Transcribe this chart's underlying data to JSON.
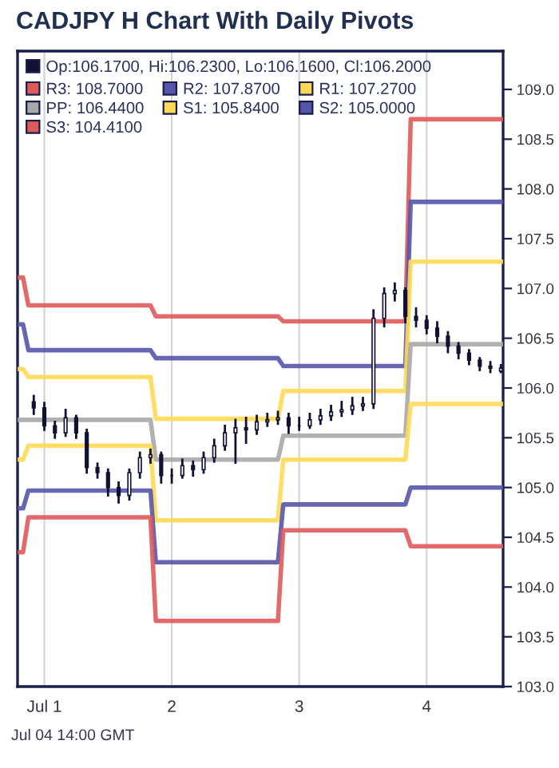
{
  "chart_data": {
    "type": "candlestick",
    "title": "CADJPY H Chart With Daily Pivots",
    "annotations": [
      "Jul 04 14:00 GMT"
    ],
    "xlim": [
      0.79,
      4.6
    ],
    "xticks": [
      {
        "value": 1,
        "label": "Jul 1"
      },
      {
        "value": 2,
        "label": "2"
      },
      {
        "value": 3,
        "label": "3"
      },
      {
        "value": 4,
        "label": "4"
      }
    ],
    "ylim": [
      103,
      109.385
    ],
    "yticks": [
      {
        "value": 103,
        "label": "103.0"
      },
      {
        "value": 103.5,
        "label": "103.5"
      },
      {
        "value": 104,
        "label": "104.0"
      },
      {
        "value": 104.5,
        "label": "104.5"
      },
      {
        "value": 105,
        "label": "105.0"
      },
      {
        "value": 105.5,
        "label": "105.5"
      },
      {
        "value": 106,
        "label": "106.0"
      },
      {
        "value": 106.5,
        "label": "106.5"
      },
      {
        "value": 107,
        "label": "107.0"
      },
      {
        "value": 107.5,
        "label": "107.5"
      },
      {
        "value": 108,
        "label": "108.0"
      },
      {
        "value": 108.5,
        "label": "108.5"
      },
      {
        "value": 109,
        "label": "109.0"
      }
    ],
    "grid": "x",
    "legend": "top left",
    "series": [
      {
        "name": "Op:106.1700, Hi:106.2300, Lo:106.1600, Cl:106.2000",
        "color": "#111133",
        "x": [
          0.917,
          1.0,
          1.083,
          1.167,
          1.25,
          1.333,
          1.417,
          1.5,
          1.583,
          1.667,
          1.75,
          1.833,
          1.917,
          2.0,
          2.083,
          2.167,
          2.25,
          2.333,
          2.417,
          2.5,
          2.583,
          2.667,
          2.75,
          2.833,
          2.917,
          3.0,
          3.083,
          3.167,
          3.25,
          3.333,
          3.417,
          3.5,
          3.583,
          3.667,
          3.75,
          3.833,
          3.917,
          4.0,
          4.083,
          4.167,
          4.25,
          4.333,
          4.417,
          4.5,
          4.583
        ],
        "ohlc": [
          [
            105.86,
            105.92,
            105.74,
            105.8
          ],
          [
            105.8,
            105.85,
            105.58,
            105.62
          ],
          [
            105.62,
            105.66,
            105.5,
            105.55
          ],
          [
            105.55,
            105.78,
            105.52,
            105.7
          ],
          [
            105.7,
            105.72,
            105.5,
            105.55
          ],
          [
            105.55,
            105.58,
            105.15,
            105.2
          ],
          [
            105.2,
            105.24,
            105.1,
            105.15
          ],
          [
            105.15,
            105.18,
            104.92,
            105.0
          ],
          [
            105.0,
            105.05,
            104.85,
            104.92
          ],
          [
            104.92,
            105.18,
            104.88,
            105.15
          ],
          [
            105.15,
            105.35,
            105.1,
            105.3
          ],
          [
            105.3,
            105.38,
            105.25,
            105.33
          ],
          [
            105.33,
            105.35,
            105.05,
            105.12
          ],
          [
            105.12,
            105.18,
            105.05,
            105.12
          ],
          [
            105.12,
            105.28,
            105.1,
            105.22
          ],
          [
            105.22,
            105.26,
            105.12,
            105.18
          ],
          [
            105.18,
            105.35,
            105.15,
            105.3
          ],
          [
            105.3,
            105.48,
            105.26,
            105.42
          ],
          [
            105.42,
            105.62,
            105.38,
            105.55
          ],
          [
            105.55,
            105.68,
            105.25,
            105.6
          ],
          [
            105.6,
            105.7,
            105.45,
            105.58
          ],
          [
            105.58,
            105.72,
            105.54,
            105.66
          ],
          [
            105.66,
            105.74,
            105.62,
            105.68
          ],
          [
            105.68,
            105.76,
            105.64,
            105.7
          ],
          [
            105.7,
            105.74,
            105.55,
            105.62
          ],
          [
            105.62,
            105.7,
            105.58,
            105.62
          ],
          [
            105.62,
            105.74,
            105.6,
            105.68
          ],
          [
            105.68,
            105.78,
            105.64,
            105.72
          ],
          [
            105.72,
            105.82,
            105.68,
            105.76
          ],
          [
            105.76,
            105.86,
            105.72,
            105.78
          ],
          [
            105.78,
            105.9,
            105.74,
            105.82
          ],
          [
            105.82,
            105.9,
            105.78,
            105.84
          ],
          [
            105.84,
            106.78,
            105.8,
            106.7
          ],
          [
            106.7,
            107.0,
            106.62,
            106.95
          ],
          [
            106.95,
            107.05,
            106.88,
            106.98
          ],
          [
            106.98,
            107.0,
            106.66,
            106.72
          ],
          [
            106.72,
            106.8,
            106.62,
            106.68
          ],
          [
            106.68,
            106.72,
            106.55,
            106.6
          ],
          [
            106.6,
            106.66,
            106.46,
            106.52
          ],
          [
            106.52,
            106.56,
            106.36,
            106.42
          ],
          [
            106.42,
            106.45,
            106.3,
            106.35
          ],
          [
            106.35,
            106.38,
            106.24,
            106.28
          ],
          [
            106.28,
            106.3,
            106.18,
            106.22
          ],
          [
            106.22,
            106.26,
            106.16,
            106.2
          ],
          [
            106.17,
            106.23,
            106.16,
            106.2
          ]
        ]
      },
      {
        "name": "R3: 108.7000",
        "type": "line",
        "color": "#e05a5a",
        "x": [
          0.79,
          0.833,
          0.875,
          1.833,
          1.875,
          2.833,
          2.875,
          3.833,
          3.875,
          4.6
        ],
        "values": [
          107.11,
          107.11,
          106.83,
          106.83,
          106.72,
          106.72,
          106.67,
          106.67,
          108.7,
          108.7
        ]
      },
      {
        "name": "R2: 107.8700",
        "type": "line",
        "color": "#5555aa",
        "x": [
          0.79,
          0.833,
          0.875,
          1.833,
          1.875,
          2.833,
          2.875,
          3.833,
          3.875,
          4.6
        ],
        "values": [
          106.64,
          106.64,
          106.38,
          106.38,
          106.3,
          106.3,
          106.22,
          106.22,
          107.87,
          107.87
        ]
      },
      {
        "name": "R1: 107.2700",
        "type": "line",
        "color": "#ffd955",
        "x": [
          0.79,
          0.833,
          0.875,
          1.833,
          1.875,
          2.833,
          2.875,
          3.833,
          3.875,
          4.6
        ],
        "values": [
          106.19,
          106.19,
          106.11,
          106.11,
          105.69,
          105.69,
          105.97,
          105.97,
          107.27,
          107.27
        ]
      },
      {
        "name": "PP: 106.4400",
        "type": "line",
        "color": "#a8a8a8",
        "x": [
          0.79,
          0.833,
          0.875,
          1.833,
          1.875,
          2.833,
          2.875,
          3.833,
          3.875,
          4.6
        ],
        "values": [
          105.68,
          105.68,
          105.68,
          105.68,
          105.28,
          105.28,
          105.52,
          105.52,
          106.44,
          106.44
        ]
      },
      {
        "name": "S1: 105.8400",
        "type": "line",
        "color": "#ffd955",
        "x": [
          0.79,
          0.833,
          0.875,
          1.833,
          1.875,
          2.833,
          2.875,
          3.833,
          3.875,
          4.6
        ],
        "values": [
          105.28,
          105.28,
          105.42,
          105.42,
          104.67,
          104.67,
          105.28,
          105.28,
          105.84,
          105.84
        ]
      },
      {
        "name": "S2: 105.0000",
        "type": "line",
        "color": "#5555aa",
        "x": [
          0.79,
          0.833,
          0.875,
          1.833,
          1.875,
          2.833,
          2.875,
          3.833,
          3.875,
          4.6
        ],
        "values": [
          104.79,
          104.79,
          104.97,
          104.97,
          104.25,
          104.25,
          104.83,
          104.83,
          105.0,
          105.0
        ]
      },
      {
        "name": "S3: 104.4100",
        "type": "line",
        "color": "#e05a5a",
        "x": [
          0.79,
          0.833,
          0.875,
          1.833,
          1.875,
          2.833,
          2.875,
          3.833,
          3.875,
          4.6
        ],
        "values": [
          104.35,
          104.35,
          104.7,
          104.7,
          103.66,
          103.66,
          104.57,
          104.57,
          104.41,
          104.41
        ]
      }
    ]
  }
}
